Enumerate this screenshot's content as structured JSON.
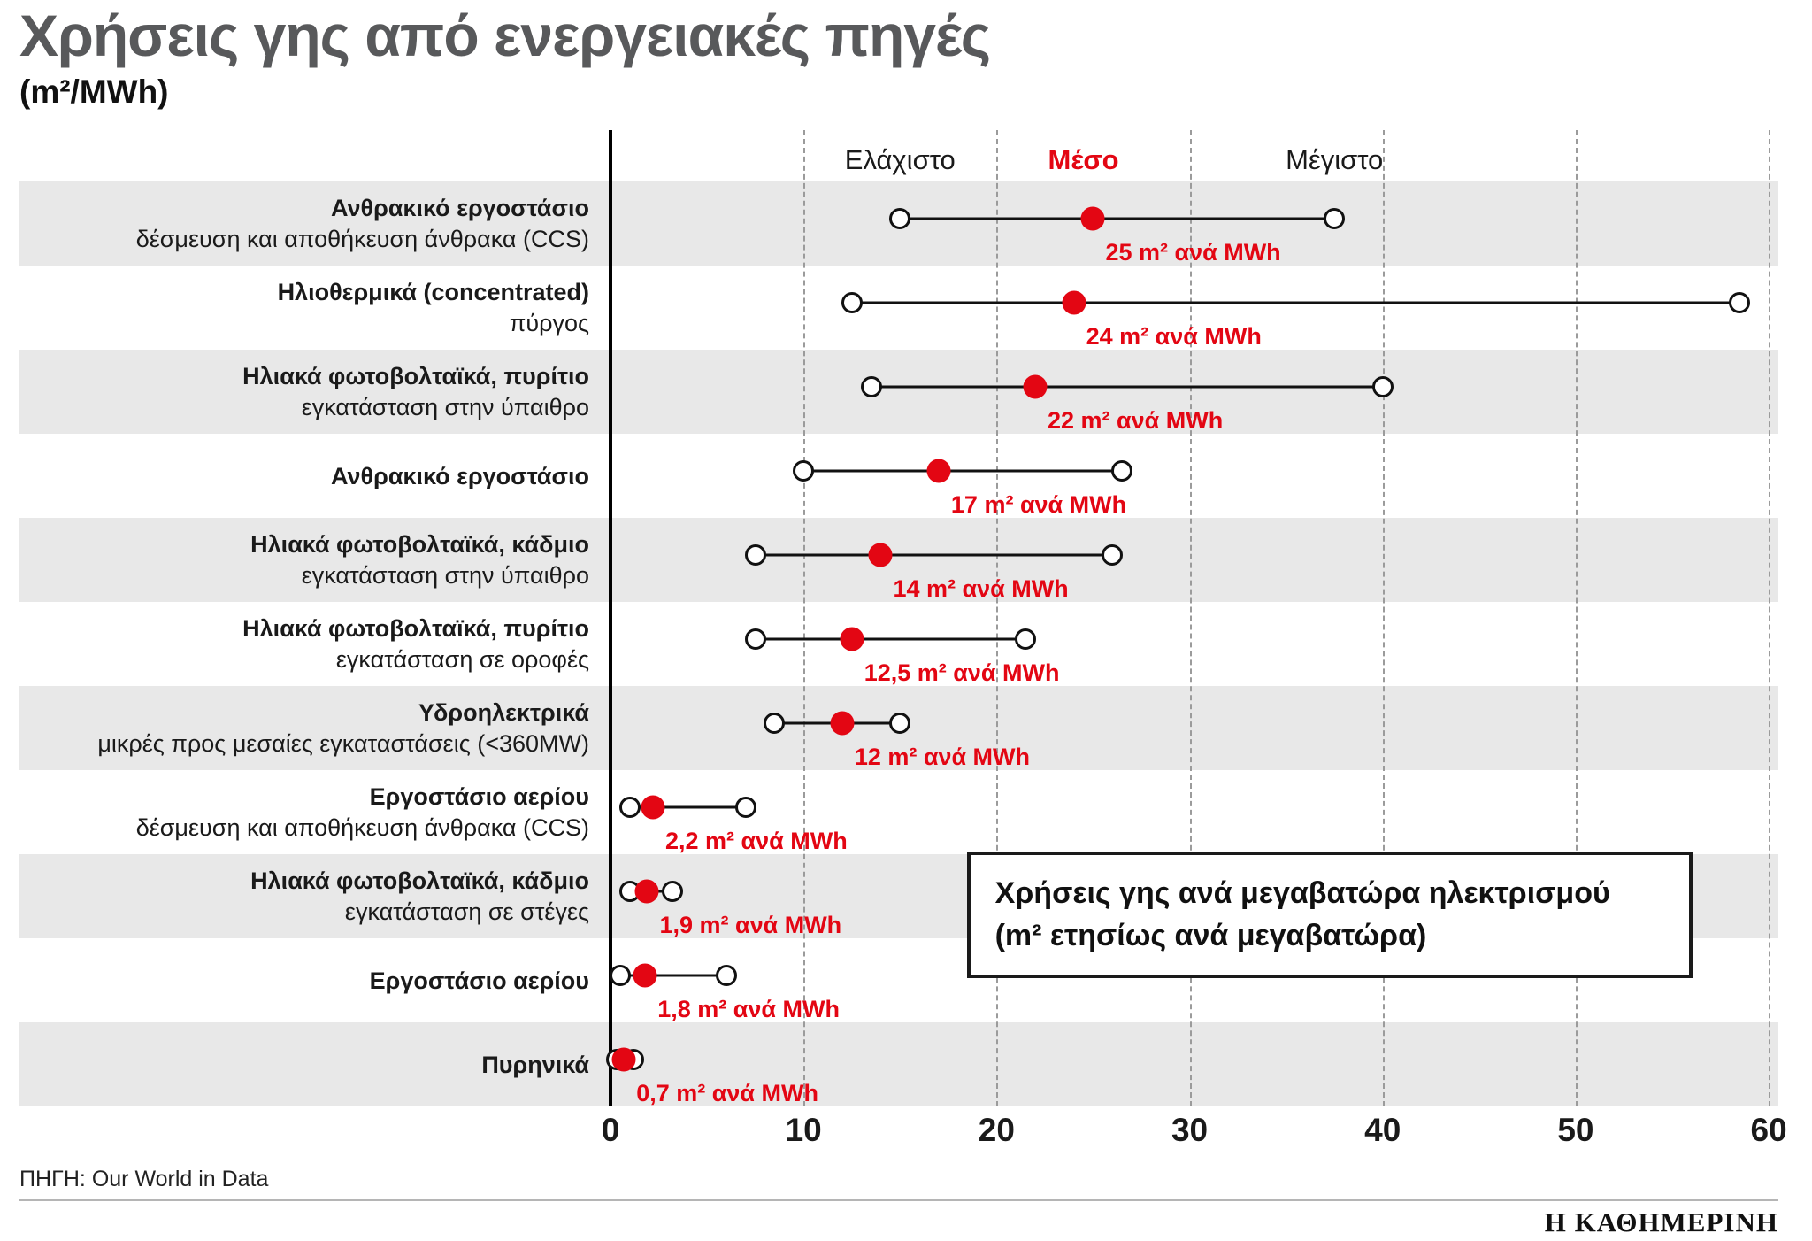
{
  "title": "Χρήσεις γης από ενεργειακές πηγές",
  "subtitle": "(m²/MWh)",
  "legend": {
    "min": "Ελάχιστο",
    "mean": "Μέσο",
    "max": "Μέγιστο"
  },
  "annotation": {
    "line1": "Χρήσεις γης ανά μεγαβατώρα ηλεκτρισμού",
    "line2": "(m² ετησίως ανά μεγαβατώρα)"
  },
  "footer": {
    "source": "ΠΗΓΗ: Our World in Data",
    "brand": "Η ΚΑΘΗΜΕΡΙΝΗ"
  },
  "colors": {
    "accent_red": "#e30613",
    "stripe_gray": "#e8e8e8",
    "title_gray": "#58595b",
    "grid_gray": "#9b9b9b"
  },
  "chart_data": {
    "type": "scatter",
    "subtype": "dumbbell-range",
    "title": "Χρήσεις γης από ενεργειακές πηγές",
    "xlabel": "m²/MWh",
    "xlim": [
      0,
      60.5
    ],
    "x_ticks": [
      0,
      10,
      20,
      30,
      40,
      50,
      60
    ],
    "grid": "dashed-vertical",
    "legend_position": "top",
    "legend_x": {
      "min": 15,
      "mean": 24.5,
      "max": 37.5
    },
    "rows": [
      {
        "label": "Ανθρακικό εργοστάσιο",
        "sublabel": "δέσμευση και αποθήκευση άνθρακα (CCS)",
        "min": 15,
        "mean": 25,
        "max": 37.5,
        "mean_label": "25 m² ανά MWh"
      },
      {
        "label": "Ηλιοθερμικά (concentrated)",
        "sublabel": "πύργος",
        "min": 12.5,
        "mean": 24,
        "max": 58.5,
        "mean_label": "24 m² ανά MWh"
      },
      {
        "label": "Ηλιακά φωτοβολταϊκά, πυρίτιο",
        "sublabel": "εγκατάσταση στην ύπαιθρο",
        "min": 13.5,
        "mean": 22,
        "max": 40,
        "mean_label": "22 m² ανά MWh"
      },
      {
        "label": "Ανθρακικό εργοστάσιο",
        "sublabel": "",
        "min": 10,
        "mean": 17,
        "max": 26.5,
        "mean_label": "17 m² ανά MWh"
      },
      {
        "label": "Ηλιακά φωτοβολταϊκά, κάδμιο",
        "sublabel": "εγκατάσταση στην ύπαιθρο",
        "min": 7.5,
        "mean": 14,
        "max": 26,
        "mean_label": "14 m² ανά MWh"
      },
      {
        "label": "Ηλιακά φωτοβολταϊκά, πυρίτιο",
        "sublabel": "εγκατάσταση σε οροφές",
        "min": 7.5,
        "mean": 12.5,
        "max": 21.5,
        "mean_label": "12,5 m² ανά MWh"
      },
      {
        "label": "Υδροηλεκτρικά",
        "sublabel": "μικρές προς μεσαίες εγκαταστάσεις (<360MW)",
        "min": 8.5,
        "mean": 12,
        "max": 15,
        "mean_label": "12 m² ανά MWh"
      },
      {
        "label": "Εργοστάσιο αερίου",
        "sublabel": "δέσμευση και αποθήκευση άνθρακα (CCS)",
        "min": 1,
        "mean": 2.2,
        "max": 7,
        "mean_label": "2,2 m² ανά MWh"
      },
      {
        "label": "Ηλιακά φωτοβολταϊκά, κάδμιο",
        "sublabel": "εγκατάσταση σε στέγες",
        "min": 1,
        "mean": 1.9,
        "max": 3.2,
        "mean_label": "1,9 m² ανά MWh"
      },
      {
        "label": "Εργοστάσιο αερίου",
        "sublabel": "",
        "min": 0.5,
        "mean": 1.8,
        "max": 6,
        "mean_label": "1,8 m² ανά MWh"
      },
      {
        "label": "Πυρηνικά",
        "sublabel": "",
        "min": 0.3,
        "mean": 0.7,
        "max": 1.2,
        "mean_label": "0,7 m² ανά MWh"
      }
    ]
  }
}
